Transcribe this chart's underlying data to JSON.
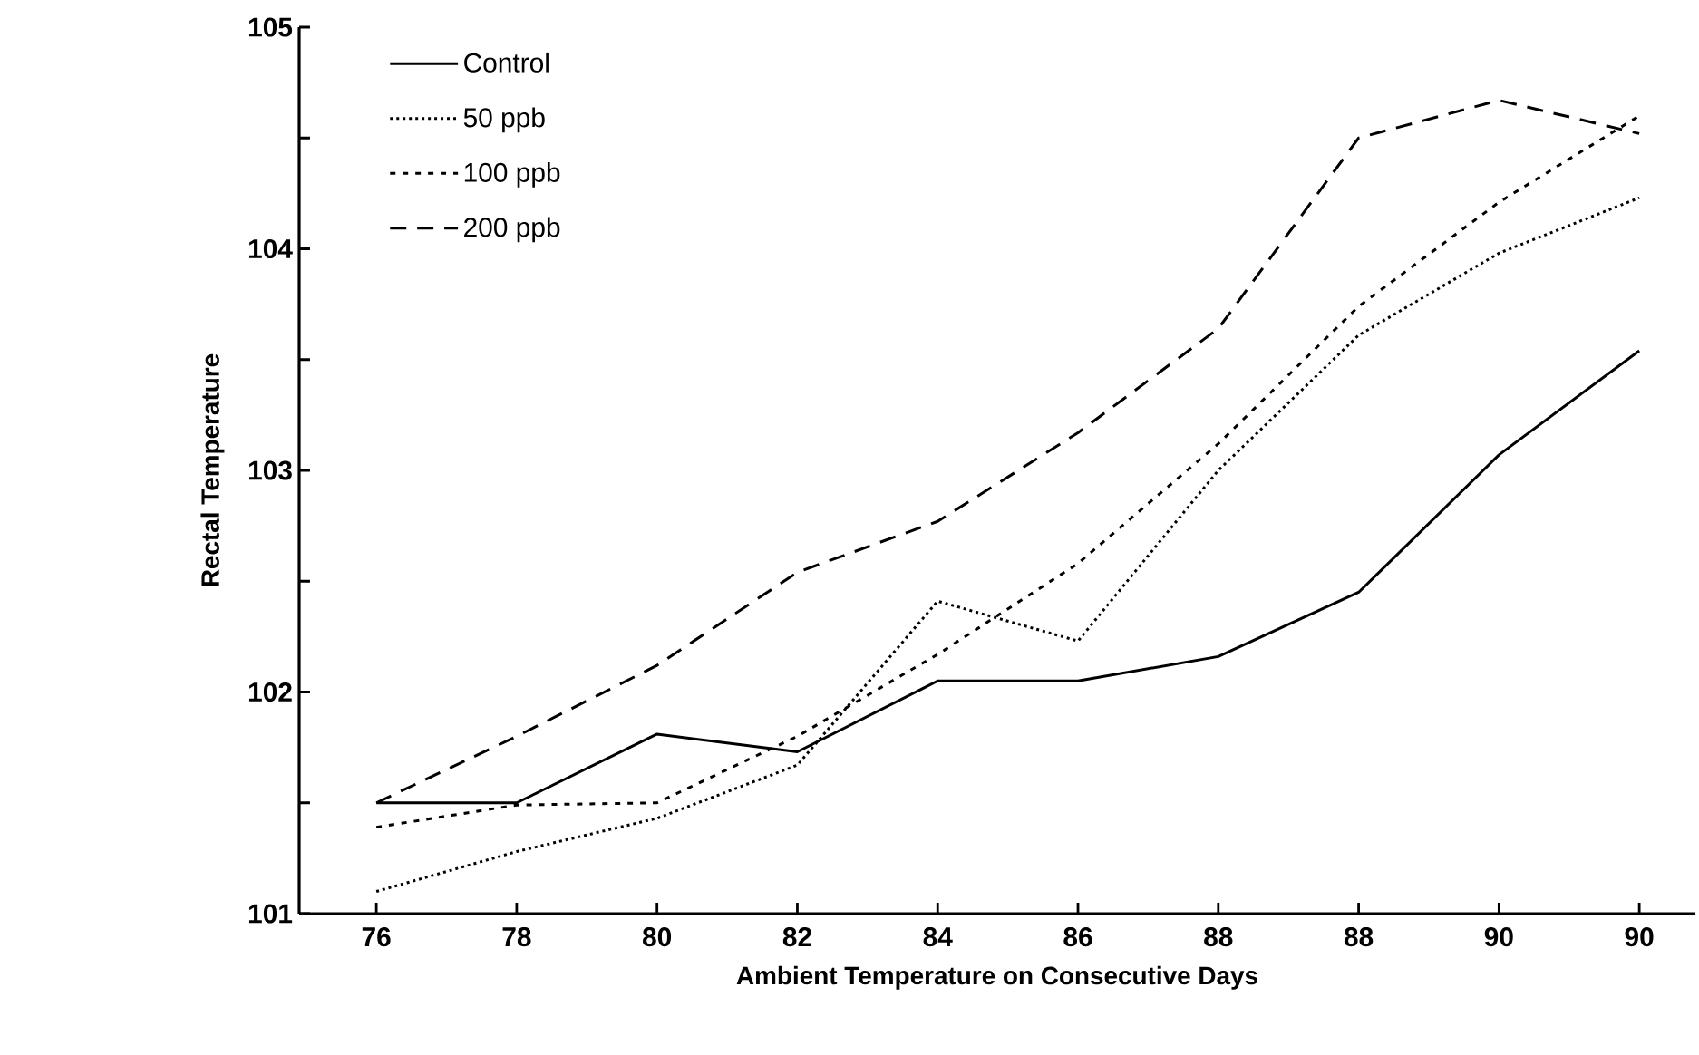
{
  "chart_data": {
    "type": "line",
    "xlabel": "Ambient Temperature on Consecutive Days",
    "ylabel": "Rectal Temperature",
    "categories": [
      "76",
      "78",
      "80",
      "82",
      "84",
      "86",
      "88",
      "88",
      "90",
      "90"
    ],
    "series": [
      {
        "name": "Control",
        "color": "#000000",
        "line_style": "solid",
        "values": [
          101.5,
          101.5,
          101.81,
          101.73,
          102.05,
          102.05,
          102.16,
          102.45,
          103.07,
          103.54
        ]
      },
      {
        "name": "50 ppb",
        "color": "#000000",
        "line_style": "dotted",
        "values": [
          101.1,
          101.28,
          101.43,
          101.67,
          102.41,
          102.23,
          103.0,
          103.61,
          103.98,
          104.23
        ]
      },
      {
        "name": "100 ppb",
        "color": "#000000",
        "line_style": "dashed",
        "values": [
          101.39,
          101.49,
          101.5,
          101.8,
          102.17,
          102.58,
          103.12,
          103.74,
          104.21,
          104.6
        ]
      },
      {
        "name": "200 ppb",
        "color": "#000000",
        "line_style": "dashed",
        "values": [
          101.5,
          101.8,
          102.12,
          102.54,
          102.77,
          103.17,
          103.64,
          104.5,
          104.67,
          104.52
        ]
      }
    ],
    "ylim": [
      101,
      105
    ],
    "yticks": [
      101,
      {
        "value": 101.5,
        "label": null
      },
      102,
      {
        "value": 102.5,
        "label": null
      },
      103,
      {
        "value": 103.5,
        "label": null
      },
      104,
      {
        "value": 104.5,
        "label": null
      },
      105
    ],
    "grid": false,
    "legend": "top left",
    "marker": "none"
  }
}
